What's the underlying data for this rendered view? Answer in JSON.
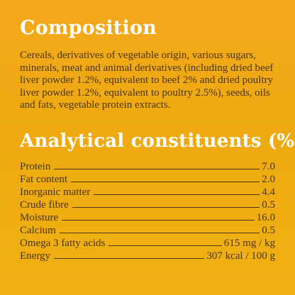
{
  "composition": {
    "title": "Composition",
    "text": "Cereals, derivatives of vegetable origin, various sugars, minerals, meat and animal derivatives (including dried beef liver powder 1.2%, equivalent to beef 2% and dried poultry liver powder 1.2%, equivalent to poultry 2.5%), seeds, oils and fats, vegetable protein extracts."
  },
  "analytical": {
    "title": "Analytical constituents (%)",
    "rows": [
      {
        "label": "Protein",
        "value": "7.0"
      },
      {
        "label": "Fat content",
        "value": "2.0"
      },
      {
        "label": "Inorganic matter",
        "value": "4.4"
      },
      {
        "label": "Crude fibre",
        "value": "0.5"
      },
      {
        "label": "Moisture",
        "value": "16.0"
      },
      {
        "label": "Calcium",
        "value": "0.5"
      },
      {
        "label": "Omega 3 fatty acids",
        "value": "615 mg / kg"
      },
      {
        "label": "Energy",
        "value": "307 kcal / 100 g"
      }
    ]
  },
  "colors": {
    "background": "#eeaa10",
    "heading": "#ffffff",
    "text": "#4a3614"
  }
}
